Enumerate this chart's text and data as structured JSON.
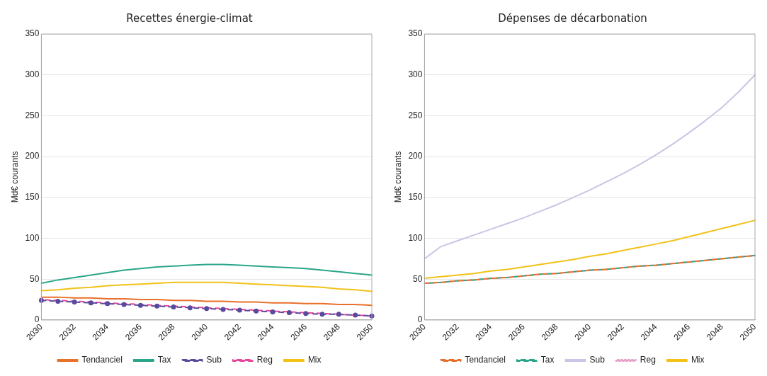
{
  "chart_data": [
    {
      "type": "line",
      "title": "Recettes énergie-climat",
      "ylabel": "Md€ courants",
      "categories": [
        "2030",
        null,
        "2032",
        null,
        "2034",
        null,
        "2036",
        null,
        "2038",
        null,
        "2040",
        null,
        "2042",
        null,
        "2044",
        null,
        "2046",
        null,
        "2048",
        null,
        "2050"
      ],
      "ylim": [
        0,
        350
      ],
      "yticks": [
        0,
        50,
        100,
        150,
        200,
        250,
        300,
        350
      ],
      "grid": "y",
      "legend": "bottom",
      "series": [
        {
          "name": "Tendanciel",
          "color": "#e8702a",
          "line_style": "solid",
          "values": [
            28,
            28,
            27,
            27,
            26,
            26,
            25,
            25,
            24,
            24,
            23,
            23,
            22,
            22,
            21,
            21,
            20,
            20,
            19,
            19,
            18
          ]
        },
        {
          "name": "Tax",
          "color": "#2aa58a",
          "line_style": "solid",
          "values": [
            45,
            49,
            52,
            55,
            58,
            61,
            63,
            65,
            66,
            67,
            68,
            68,
            67,
            66,
            65,
            64,
            63,
            61,
            59,
            57,
            55
          ]
        },
        {
          "name": "Sub",
          "color": "#5a4a9c",
          "line_style": "dashed",
          "marker": "circle",
          "values": [
            24,
            23,
            22,
            21,
            20,
            19,
            18,
            17,
            16,
            15,
            14,
            13,
            12,
            11,
            10,
            9,
            8,
            7,
            7,
            6,
            5
          ]
        },
        {
          "name": "Reg",
          "color": "#e8479a",
          "line_style": "dashed",
          "values": [
            25,
            24,
            23,
            22,
            21,
            20,
            19,
            18,
            17,
            16,
            15,
            14,
            13,
            12,
            11,
            10,
            9,
            8,
            7,
            6,
            5
          ]
        },
        {
          "name": "Mix",
          "color": "#f2c218",
          "line_style": "solid",
          "values": [
            36,
            37,
            39,
            40,
            42,
            43,
            44,
            45,
            46,
            46,
            46,
            46,
            45,
            44,
            43,
            42,
            41,
            40,
            38,
            37,
            35
          ]
        }
      ]
    },
    {
      "type": "line",
      "title": "Dépenses de décarbonation",
      "ylabel": "Md€ courants",
      "categories": [
        "2030",
        null,
        "2032",
        null,
        "2034",
        null,
        "2036",
        null,
        "2038",
        null,
        "2040",
        null,
        "2042",
        null,
        "2044",
        null,
        "2046",
        null,
        "2048",
        null,
        "2050"
      ],
      "ylim": [
        0,
        350
      ],
      "yticks": [
        0,
        50,
        100,
        150,
        200,
        250,
        300,
        350
      ],
      "grid": "y",
      "legend": "bottom",
      "series": [
        {
          "name": "Tendanciel",
          "color": "#e8702a",
          "line_style": "dashed",
          "values": [
            45,
            46,
            48,
            49,
            51,
            52,
            54,
            56,
            57,
            59,
            61,
            62,
            64,
            66,
            67,
            69,
            71,
            73,
            75,
            77,
            79
          ]
        },
        {
          "name": "Tax",
          "color": "#2aa58a",
          "line_style": "dashed",
          "values": [
            45,
            46,
            48,
            49,
            51,
            52,
            54,
            56,
            57,
            59,
            61,
            62,
            64,
            66,
            67,
            69,
            71,
            73,
            75,
            77,
            79
          ]
        },
        {
          "name": "Sub",
          "color": "#c8c6e4",
          "line_style": "solid",
          "values": [
            75,
            90,
            97,
            104,
            111,
            118,
            125,
            133,
            141,
            150,
            159,
            169,
            179,
            190,
            202,
            215,
            229,
            244,
            260,
            279,
            300
          ]
        },
        {
          "name": "Reg",
          "color": "#e8a0c8",
          "line_style": "dotted",
          "values": [
            45,
            46,
            48,
            49,
            51,
            52,
            54,
            56,
            57,
            59,
            61,
            62,
            64,
            66,
            67,
            69,
            71,
            73,
            75,
            77,
            79
          ]
        },
        {
          "name": "Mix",
          "color": "#f2c218",
          "line_style": "solid",
          "values": [
            51,
            53,
            55,
            57,
            60,
            62,
            65,
            68,
            71,
            74,
            78,
            81,
            85,
            89,
            93,
            97,
            102,
            107,
            112,
            117,
            122
          ]
        }
      ]
    }
  ]
}
